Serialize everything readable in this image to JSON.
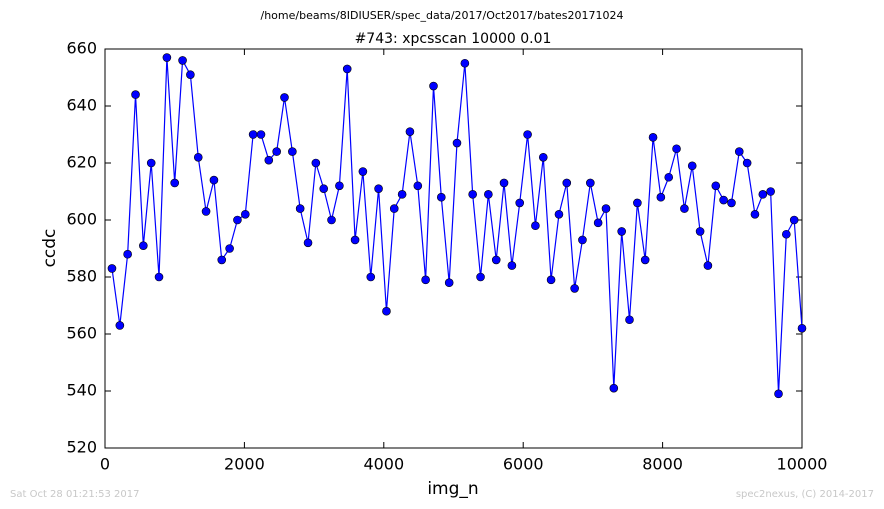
{
  "chart_data": {
    "type": "line",
    "suptitle": "/home/beams/8IDIUSER/spec_data/2017/Oct2017/bates20171024",
    "title": "#743: xpcsscan 10000 0.01",
    "x_label": "img_n",
    "y_label": "ccdc",
    "footer_left": "Sat Oct 28 01:21:53 2017",
    "footer_right": "spec2nexus, (C) 2014-2017",
    "color": "#0000ff",
    "xlim": [
      0,
      10000
    ],
    "xticks": [
      0,
      2000,
      4000,
      6000,
      8000,
      10000
    ],
    "ylim": [
      520,
      660
    ],
    "yticks": [
      520,
      540,
      560,
      580,
      600,
      620,
      640,
      660
    ],
    "x": [
      100,
      213,
      325,
      438,
      550,
      663,
      775,
      888,
      1000,
      1113,
      1225,
      1338,
      1450,
      1563,
      1675,
      1788,
      1900,
      2013,
      2125,
      2238,
      2350,
      2463,
      2575,
      2688,
      2800,
      2913,
      3025,
      3138,
      3250,
      3363,
      3475,
      3588,
      3700,
      3813,
      3925,
      4038,
      4150,
      4263,
      4375,
      4488,
      4600,
      4713,
      4825,
      4938,
      5050,
      5163,
      5275,
      5388,
      5500,
      5613,
      5725,
      5838,
      5950,
      6063,
      6175,
      6288,
      6400,
      6513,
      6625,
      6738,
      6850,
      6963,
      7075,
      7188,
      7300,
      7413,
      7525,
      7638,
      7750,
      7863,
      7975,
      8088,
      8200,
      8313,
      8425,
      8538,
      8650,
      8763,
      8875,
      8988,
      9100,
      9213,
      9325,
      9438,
      9550,
      9663,
      9775,
      9888,
      10000
    ],
    "values": [
      583,
      563,
      588,
      644,
      591,
      620,
      580,
      657,
      613,
      656,
      651,
      622,
      603,
      614,
      586,
      590,
      600,
      602,
      630,
      630,
      621,
      624,
      643,
      624,
      604,
      592,
      620,
      611,
      600,
      612,
      653,
      593,
      617,
      580,
      611,
      568,
      604,
      609,
      631,
      612,
      579,
      647,
      608,
      578,
      627,
      655,
      609,
      580,
      609,
      586,
      613,
      584,
      606,
      630,
      598,
      622,
      579,
      602,
      613,
      576,
      593,
      613,
      599,
      604,
      541,
      596,
      565,
      606,
      586,
      629,
      608,
      615,
      625,
      604,
      619,
      596,
      584,
      612,
      607,
      606,
      624,
      620,
      602,
      609,
      610,
      539,
      595,
      600,
      562
    ]
  }
}
